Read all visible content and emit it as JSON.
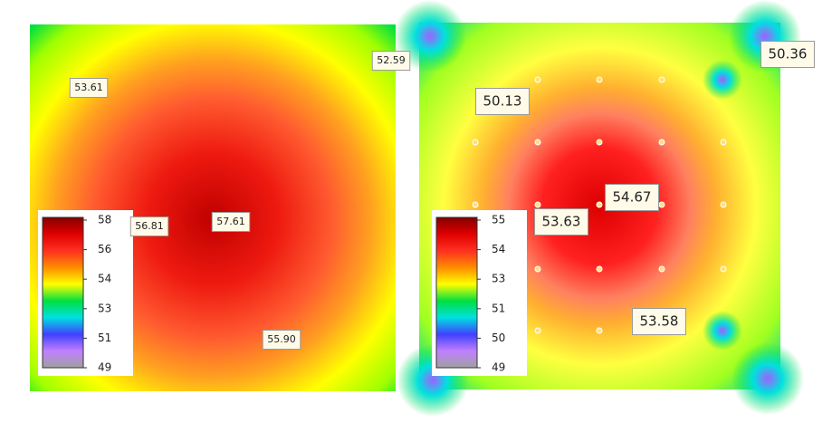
{
  "chart_data": [
    {
      "type": "heatmap",
      "annotations": [
        "53.61",
        "52.59",
        "56.81",
        "57.61",
        "55.90"
      ],
      "colorbar_ticks": [
        58,
        56,
        54,
        53,
        51,
        49
      ],
      "colormap": [
        "#800000",
        "#e00000",
        "#ff3020",
        "#ff8c00",
        "#ffff00",
        "#00e040",
        "#00e0e0",
        "#4040ff",
        "#c080ff",
        "#a0a0a0"
      ]
    },
    {
      "type": "heatmap",
      "annotations": [
        "50.36",
        "50.13",
        "54.67",
        "53.63",
        "53.58"
      ],
      "colorbar_ticks": [
        55,
        54,
        53,
        51,
        50,
        49
      ],
      "colormap": [
        "#800000",
        "#e00000",
        "#ff3020",
        "#ff8c00",
        "#ffff00",
        "#00e040",
        "#00e0e0",
        "#4040ff",
        "#c080ff",
        "#a0a0a0"
      ]
    }
  ]
}
